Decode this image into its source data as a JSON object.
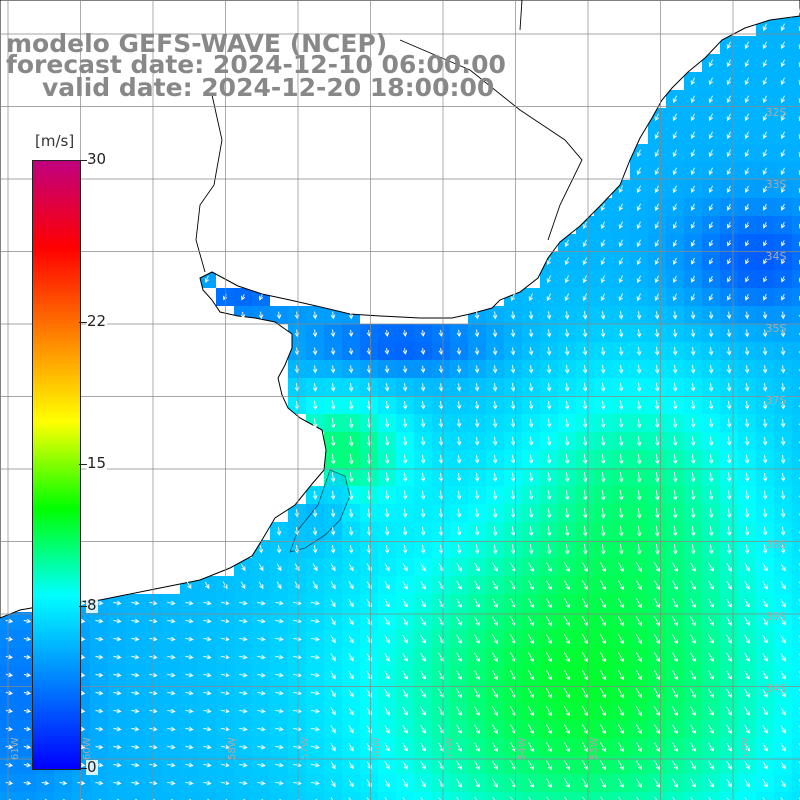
{
  "title": {
    "model": "modelo GEFS-WAVE (NCEP)",
    "forecast": "forecast date: 2024-12-10 06:00:00",
    "valid": "valid date: 2024-12-20 18:00:00"
  },
  "legend": {
    "units": "[m/s]",
    "min": 0,
    "max": 30,
    "tick_labels": [
      "30",
      "22",
      "15",
      "8",
      "0"
    ],
    "tick_values": [
      30,
      22,
      15,
      8,
      0
    ],
    "color_stops": [
      "#0000ff",
      "#0080ff",
      "#00ffff",
      "#00ff00",
      "#ffff00",
      "#ff8000",
      "#ff0000",
      "#c00080"
    ]
  },
  "map": {
    "lat_labels": [
      "32S",
      "33S",
      "34S",
      "35S",
      "37S",
      "38S",
      "39S",
      "34S"
    ],
    "lon_labels": [
      "61W",
      "60W",
      "58W",
      "57W",
      "56W",
      "55W",
      "54W",
      "53W",
      "52W"
    ],
    "land_color": "#ffffff",
    "grid_color": "#888888"
  }
}
